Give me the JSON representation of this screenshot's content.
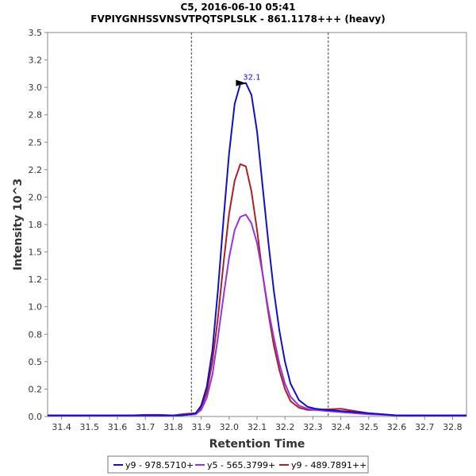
{
  "chart_data": {
    "type": "line",
    "title": "C5, 2016-06-10 05:41",
    "subtitle": "FVPIYGNHSSVNSVTPQTSPLSLK - 861.1178+++ (heavy)",
    "xlabel": "Retention Time",
    "ylabel": "Intensity 10^3",
    "xlim": [
      31.35,
      32.85
    ],
    "ylim": [
      0,
      3.5
    ],
    "x_ticks": [
      "31.4",
      "31.5",
      "31.6",
      "31.7",
      "31.8",
      "31.9",
      "32.0",
      "32.1",
      "32.2",
      "32.3",
      "32.4",
      "32.5",
      "32.6",
      "32.7",
      "32.8"
    ],
    "y_ticks": [
      "0.0",
      "0.2",
      "0.5",
      "0.8",
      "1.0",
      "1.2",
      "1.5",
      "1.8",
      "2.0",
      "2.2",
      "2.5",
      "2.8",
      "3.0",
      "3.2",
      "3.5"
    ],
    "y_tick_values": [
      0.0,
      0.25,
      0.5,
      0.75,
      1.0,
      1.25,
      1.5,
      1.75,
      2.0,
      2.25,
      2.5,
      2.75,
      3.0,
      3.25,
      3.5
    ],
    "integration_bounds": [
      31.865,
      32.355
    ],
    "peak_annotation": {
      "x": 32.07,
      "y": 3.04,
      "label": "32.1"
    },
    "legend_position": "bottom",
    "series": [
      {
        "name": "y9 - 978.5710+",
        "color": "#1010cc",
        "x": [
          31.35,
          31.5,
          31.65,
          31.75,
          31.82,
          31.85,
          31.88,
          31.9,
          31.92,
          31.94,
          31.96,
          31.98,
          32.0,
          32.02,
          32.04,
          32.06,
          32.08,
          32.1,
          32.12,
          32.14,
          32.16,
          32.18,
          32.2,
          32.22,
          32.25,
          32.28,
          32.31,
          32.35,
          32.4,
          32.45,
          32.5,
          32.55,
          32.6,
          32.7,
          32.85
        ],
        "values": [
          0.01,
          0.01,
          0.01,
          0.01,
          0.01,
          0.015,
          0.03,
          0.1,
          0.27,
          0.6,
          1.15,
          1.8,
          2.4,
          2.85,
          3.03,
          3.04,
          2.93,
          2.6,
          2.1,
          1.6,
          1.15,
          0.78,
          0.5,
          0.3,
          0.15,
          0.09,
          0.07,
          0.06,
          0.05,
          0.04,
          0.03,
          0.02,
          0.01,
          0.01,
          0.01
        ]
      },
      {
        "name": "y5 - 565.3799+",
        "color": "#9933dd",
        "x": [
          31.35,
          31.5,
          31.65,
          31.75,
          31.82,
          31.85,
          31.88,
          31.9,
          31.92,
          31.94,
          31.96,
          31.98,
          32.0,
          32.02,
          32.04,
          32.06,
          32.08,
          32.1,
          32.12,
          32.14,
          32.16,
          32.18,
          32.2,
          32.22,
          32.25,
          32.28,
          32.31,
          32.35,
          32.4,
          32.45,
          32.5,
          32.55,
          32.6,
          32.7,
          32.85
        ],
        "values": [
          0.01,
          0.01,
          0.01,
          0.01,
          0.01,
          0.015,
          0.02,
          0.06,
          0.17,
          0.38,
          0.72,
          1.1,
          1.45,
          1.7,
          1.82,
          1.84,
          1.76,
          1.58,
          1.3,
          0.98,
          0.72,
          0.48,
          0.3,
          0.18,
          0.1,
          0.07,
          0.06,
          0.05,
          0.04,
          0.03,
          0.02,
          0.015,
          0.01,
          0.01,
          0.01
        ]
      },
      {
        "name": "y9 - 489.7891++",
        "color": "#aa2222",
        "x": [
          31.35,
          31.5,
          31.65,
          31.7,
          31.75,
          31.8,
          31.83,
          31.85,
          31.88,
          31.9,
          31.92,
          31.94,
          31.96,
          31.98,
          32.0,
          32.02,
          32.04,
          32.06,
          32.08,
          32.1,
          32.12,
          32.14,
          32.16,
          32.18,
          32.2,
          32.22,
          32.25,
          32.28,
          32.31,
          32.35,
          32.4,
          32.45,
          32.5,
          32.55,
          32.6,
          32.7,
          32.85
        ],
        "values": [
          0.01,
          0.01,
          0.01,
          0.015,
          0.015,
          0.01,
          0.02,
          0.025,
          0.03,
          0.08,
          0.22,
          0.5,
          0.9,
          1.4,
          1.85,
          2.15,
          2.3,
          2.28,
          2.05,
          1.7,
          1.3,
          0.95,
          0.65,
          0.42,
          0.25,
          0.14,
          0.08,
          0.06,
          0.06,
          0.065,
          0.07,
          0.05,
          0.03,
          0.02,
          0.01,
          0.01,
          0.01
        ]
      }
    ]
  }
}
